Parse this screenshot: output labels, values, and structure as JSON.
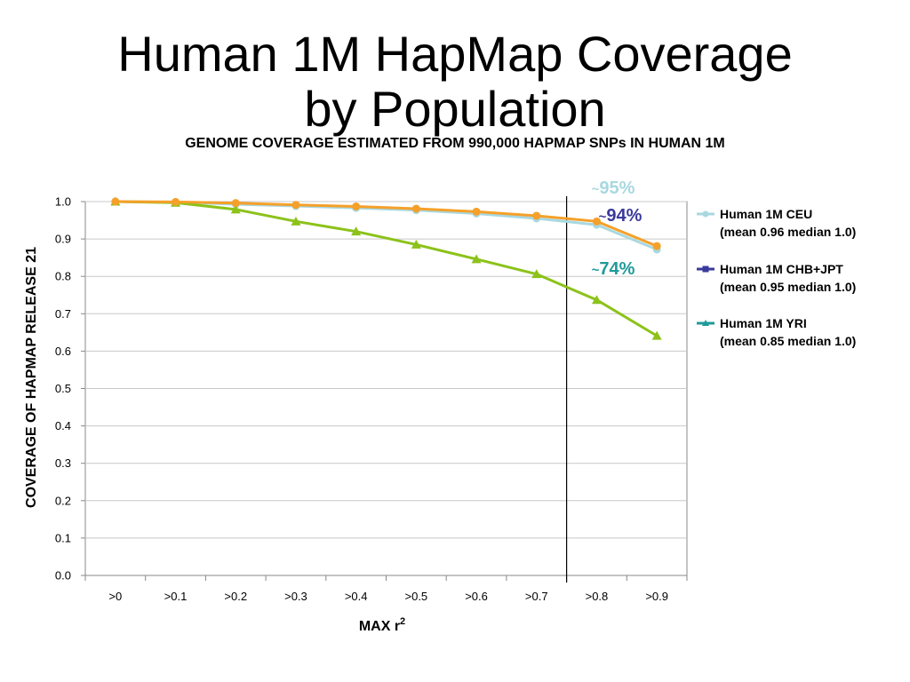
{
  "slide": {
    "title_line1": "Human 1M HapMap Coverage",
    "title_line2": "by Population"
  },
  "chart_data": {
    "type": "line",
    "title": "GENOME COVERAGE ESTIMATED FROM 990,000 HAPMAP SNPs IN HUMAN 1M",
    "xlabel": "MAX r",
    "xlabel_superscript": "2",
    "ylabel": "COVERAGE OF HAPMAP RELEASE 21",
    "categories": [
      ">0",
      ">0.1",
      ">0.2",
      ">0.3",
      ">0.4",
      ">0.5",
      ">0.6",
      ">0.7",
      ">0.8",
      ">0.9"
    ],
    "ylim": [
      0.0,
      1.0
    ],
    "yticks": [
      "0.0",
      "0.1",
      "0.2",
      "0.3",
      "0.4",
      "0.5",
      "0.6",
      "0.7",
      "0.8",
      "0.9",
      "1.0"
    ],
    "grid": true,
    "legend_position": "right",
    "reference_line_between": [
      ">0.7",
      ">0.8"
    ],
    "series": [
      {
        "name": "Human 1M CEU",
        "stats": "(mean 0.96 median 1.0)",
        "legend_color": "#a8d8e0",
        "line_color": "#a8d8e0",
        "marker": "circle",
        "values": [
          1.0,
          0.998,
          0.993,
          0.988,
          0.983,
          0.977,
          0.968,
          0.955,
          0.938,
          0.872
        ]
      },
      {
        "name": "Human 1M CHB+JPT",
        "stats": "(mean 0.95 median 1.0)",
        "legend_color": "#3a3a9c",
        "line_color": "#f5a02a",
        "marker": "circle",
        "values": [
          1.0,
          0.999,
          0.996,
          0.991,
          0.987,
          0.981,
          0.973,
          0.962,
          0.947,
          0.881
        ]
      },
      {
        "name": "Human 1M YRI",
        "stats": "(mean 0.85 median 1.0)",
        "legend_color": "#1f9a9a",
        "line_color": "#8cc21a",
        "marker": "triangle",
        "values": [
          1.0,
          0.997,
          0.979,
          0.947,
          0.92,
          0.885,
          0.846,
          0.806,
          0.737,
          0.641
        ]
      }
    ],
    "annotations": [
      {
        "label": "95%",
        "prefix": "~",
        "color": "#a8d8e0"
      },
      {
        "label": "94%",
        "prefix": "~",
        "color": "#3a3a9c"
      },
      {
        "label": "74%",
        "prefix": "~",
        "color": "#1f9a9a"
      }
    ]
  }
}
